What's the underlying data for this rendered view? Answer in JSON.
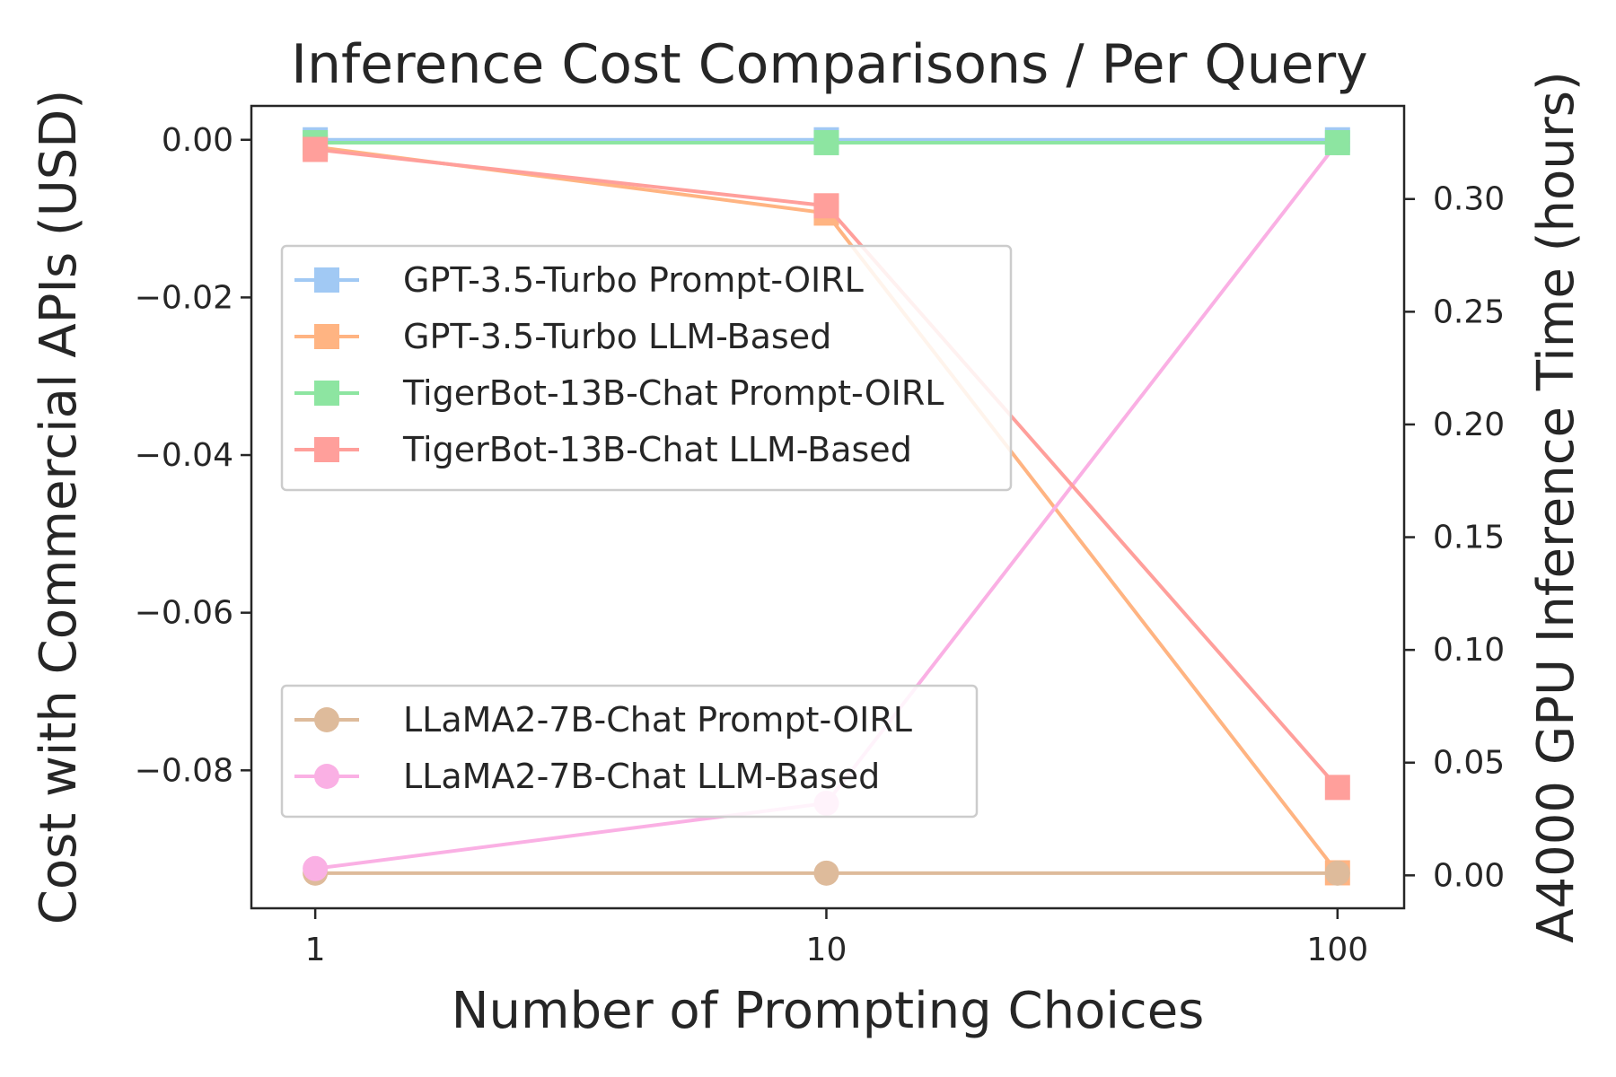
{
  "chart_data": {
    "type": "line",
    "title": "Inference Cost Comparisons / Per Query",
    "xlabel": "Number of Prompting Choices",
    "ylabel": "Cost with Commercial APIs (USD)",
    "y2label": "A4000 GPU Inference Time (hours)",
    "x": [
      1,
      10,
      100
    ],
    "xscale": "log",
    "xticks": [
      "1",
      "10",
      "100"
    ],
    "ylim": [
      -0.0975,
      0.0043
    ],
    "yticks": [
      0.0,
      -0.02,
      -0.04,
      -0.06,
      -0.08
    ],
    "ytick_labels": [
      "0.00",
      "−0.02",
      "−0.04",
      "−0.06",
      "−0.08"
    ],
    "y2lim": [
      -0.0146,
      0.3413
    ],
    "y2ticks": [
      0.0,
      0.05,
      0.1,
      0.15,
      0.2,
      0.25,
      0.3
    ],
    "y2tick_labels": [
      "0.00",
      "0.05",
      "0.10",
      "0.15",
      "0.20",
      "0.25",
      "0.30"
    ],
    "grid": false,
    "series": [
      {
        "name": "GPT-3.5-Turbo Prompt-OIRL",
        "axis": "left",
        "marker": "square",
        "color": "#a1c9f4",
        "values": [
          0.0,
          0.0,
          0.0
        ]
      },
      {
        "name": "GPT-3.5-Turbo LLM-Based",
        "axis": "left",
        "marker": "square",
        "color": "#ffb482",
        "values": [
          -0.0009,
          -0.0093,
          -0.093
        ]
      },
      {
        "name": "TigerBot-13B-Chat Prompt-OIRL",
        "axis": "right",
        "marker": "square",
        "color": "#8de5a1",
        "values": [
          0.325,
          0.325,
          0.325
        ]
      },
      {
        "name": "TigerBot-13B-Chat LLM-Based",
        "axis": "right",
        "marker": "square",
        "color": "#ff9f9b",
        "values": [
          0.322,
          0.297,
          0.039
        ]
      },
      {
        "name": "LLaMA2-7B-Chat Prompt-OIRL",
        "axis": "right",
        "marker": "circle",
        "color": "#debb9b",
        "values": [
          0.001,
          0.001,
          0.001
        ]
      },
      {
        "name": "LLaMA2-7B-Chat LLM-Based",
        "axis": "right",
        "marker": "circle",
        "color": "#fab0e4",
        "values": [
          0.003,
          0.032,
          0.325
        ]
      }
    ],
    "legends": [
      {
        "placement": "upper-left",
        "entries": [
          0,
          1,
          2,
          3
        ]
      },
      {
        "placement": "lower-left",
        "entries": [
          4,
          5
        ]
      }
    ]
  }
}
